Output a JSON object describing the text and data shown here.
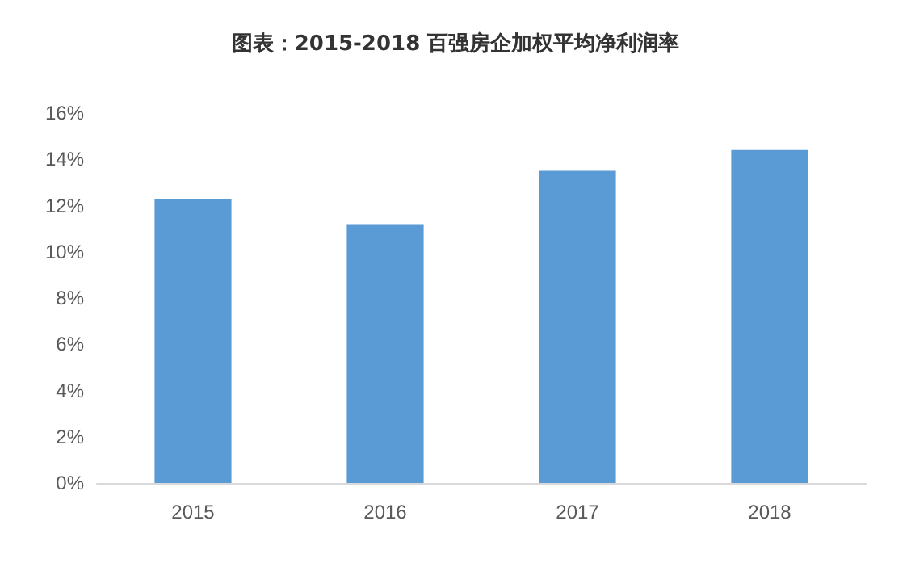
{
  "chart_data": {
    "type": "bar",
    "title": "图表：2015-2018 百强房企加权平均净利润率",
    "categories": [
      "2015",
      "2016",
      "2017",
      "2018"
    ],
    "values": [
      12.3,
      11.2,
      13.5,
      14.4
    ],
    "color": "#5b9bd5",
    "ylim": [
      0,
      16
    ],
    "yticks": [
      {
        "value": 0,
        "label": "0%"
      },
      {
        "value": 2,
        "label": "2%"
      },
      {
        "value": 4,
        "label": "4%"
      },
      {
        "value": 6,
        "label": "6%"
      },
      {
        "value": 8,
        "label": "8%"
      },
      {
        "value": 10,
        "label": "10%"
      },
      {
        "value": 12,
        "label": "12%"
      },
      {
        "value": 14,
        "label": "14%"
      },
      {
        "value": 16,
        "label": "16%"
      }
    ],
    "grid": false
  }
}
